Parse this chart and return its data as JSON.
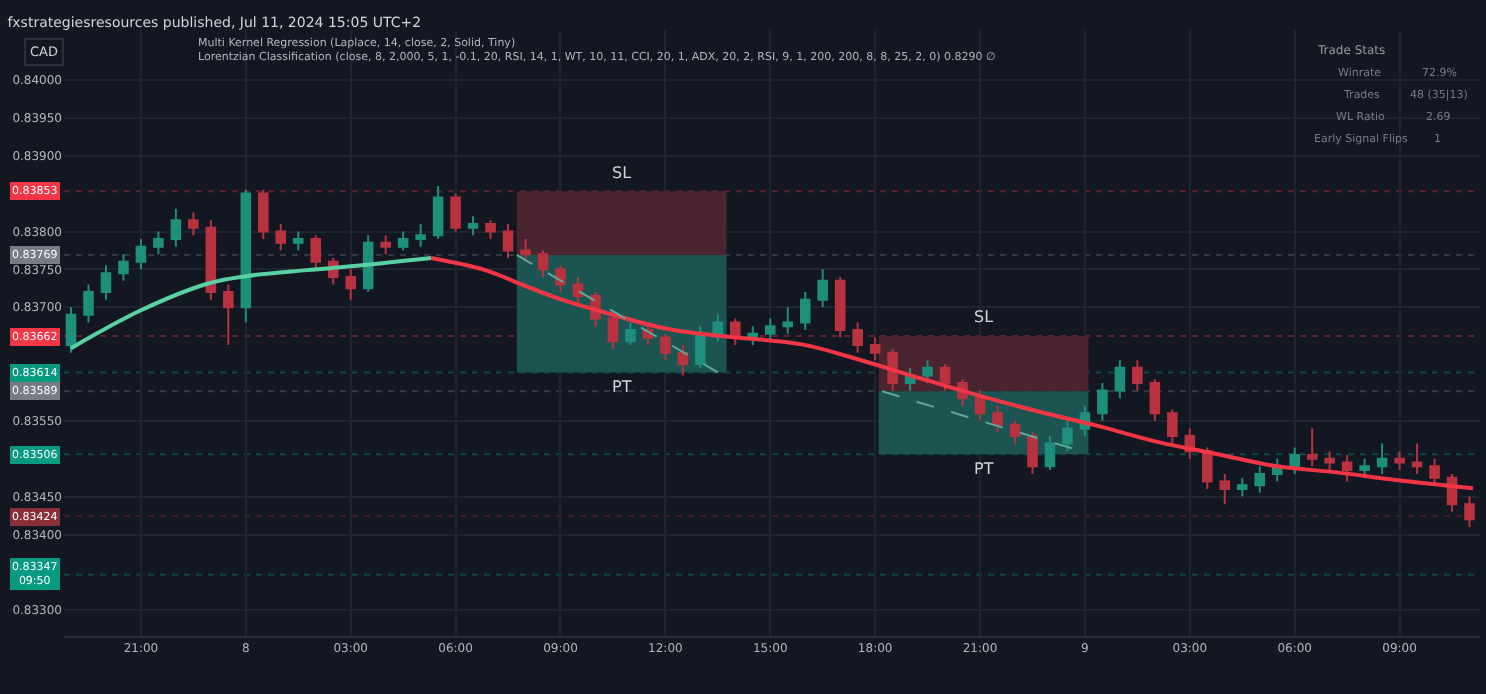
{
  "chart_data": {
    "type": "candlestick",
    "title": "fxstrategiesresources published, Jul 11, 2024 15:05 UTC+2",
    "subtitle": "Multi Kernel Regression (Laplace, 14, close, 2, Solid, Tiny)\nLorentzian Classification (close, 8, 2,000, 5, 1, -0.1, 20, RSI, 14, 1, WT, 10, 11, CCI, 20, 1, ADX, 20, 2, RSI, 9, 1, 200, 200, 8, 8, 25, 2, 0) 0.8290 ∅",
    "xlim": [
      "2024-07-07T18:48",
      "2024-07-09T11:18"
    ],
    "xticks": [
      {
        "value": "2024-07-07T21:00",
        "label": "21:00"
      },
      {
        "value": "2024-07-08T00:00",
        "label": "8"
      },
      {
        "value": "2024-07-08T03:00",
        "label": "03:00"
      },
      {
        "value": "2024-07-08T06:00",
        "label": "06:00"
      },
      {
        "value": "2024-07-08T09:00",
        "label": "09:00"
      },
      {
        "value": "2024-07-08T12:00",
        "label": "12:00"
      },
      {
        "value": "2024-07-08T15:00",
        "label": "15:00"
      },
      {
        "value": "2024-07-08T18:00",
        "label": "18:00"
      },
      {
        "value": "2024-07-08T21:00",
        "label": "21:00"
      },
      {
        "value": "2024-07-09T00:00",
        "label": "9"
      },
      {
        "value": "2024-07-09T03:00",
        "label": "03:00"
      },
      {
        "value": "2024-07-09T06:00",
        "label": "06:00"
      },
      {
        "value": "2024-07-09T09:00",
        "label": "09:00"
      }
    ],
    "ylim": [
      0.83266,
      0.84066
    ],
    "yticks": [
      {
        "value": 0.84,
        "label": "0.84000"
      },
      {
        "value": 0.8395,
        "label": "0.83950"
      },
      {
        "value": 0.839,
        "label": "0.83900"
      },
      {
        "value": 0.838,
        "label": "0.83800"
      },
      {
        "value": 0.8375,
        "label": "0.83750"
      },
      {
        "value": 0.837,
        "label": "0.83700"
      },
      {
        "value": 0.8355,
        "label": "0.83550"
      },
      {
        "value": 0.8345,
        "label": "0.83450"
      },
      {
        "value": 0.834,
        "label": "0.83400"
      },
      {
        "value": 0.833,
        "label": "0.83300"
      }
    ],
    "grid": true,
    "series": [
      {
        "x": [
          "2024-07-07T19:00",
          "2024-07-07T19:30",
          "2024-07-07T20:00",
          "2024-07-07T20:30",
          "2024-07-07T21:00",
          "2024-07-07T21:30",
          "2024-07-07T22:00",
          "2024-07-07T22:30",
          "2024-07-07T23:00",
          "2024-07-07T23:30",
          "2024-07-08T00:00",
          "2024-07-08T00:30",
          "2024-07-08T01:00",
          "2024-07-08T01:30",
          "2024-07-08T02:00",
          "2024-07-08T02:30",
          "2024-07-08T03:00",
          "2024-07-08T03:30",
          "2024-07-08T04:00",
          "2024-07-08T04:30",
          "2024-07-08T05:00",
          "2024-07-08T05:30",
          "2024-07-08T06:00",
          "2024-07-08T06:30",
          "2024-07-08T07:00",
          "2024-07-08T07:30",
          "2024-07-08T08:00",
          "2024-07-08T08:30",
          "2024-07-08T09:00",
          "2024-07-08T09:30",
          "2024-07-08T10:00",
          "2024-07-08T10:30",
          "2024-07-08T11:00",
          "2024-07-08T11:30",
          "2024-07-08T12:00",
          "2024-07-08T12:30",
          "2024-07-08T13:00",
          "2024-07-08T13:30",
          "2024-07-08T14:00",
          "2024-07-08T14:30",
          "2024-07-08T15:00",
          "2024-07-08T15:30",
          "2024-07-08T16:00",
          "2024-07-08T16:30",
          "2024-07-08T17:00",
          "2024-07-08T17:30",
          "2024-07-08T18:00",
          "2024-07-08T18:30",
          "2024-07-08T19:00",
          "2024-07-08T19:30",
          "2024-07-08T20:00",
          "2024-07-08T20:30",
          "2024-07-08T21:00",
          "2024-07-08T21:30",
          "2024-07-08T22:00",
          "2024-07-08T22:30",
          "2024-07-08T23:00",
          "2024-07-08T23:30",
          "2024-07-09T00:00",
          "2024-07-09T00:30",
          "2024-07-09T01:00",
          "2024-07-09T01:30",
          "2024-07-09T02:00",
          "2024-07-09T02:30",
          "2024-07-09T03:00",
          "2024-07-09T03:30",
          "2024-07-09T04:00",
          "2024-07-09T04:30",
          "2024-07-09T05:00",
          "2024-07-09T05:30",
          "2024-07-09T06:00",
          "2024-07-09T06:30",
          "2024-07-09T07:00",
          "2024-07-09T07:30",
          "2024-07-09T08:00",
          "2024-07-09T08:30",
          "2024-07-09T09:00",
          "2024-07-09T09:30",
          "2024-07-09T10:00",
          "2024-07-09T10:30",
          "2024-07-09T11:00"
        ],
        "colors": [
          "#1d8f7a",
          "#1d8f7a",
          "#1d8f7a",
          "#1d8f7a",
          "#1d8f7a",
          "#1d8f7a",
          "#1d8f7a",
          "#b8333f",
          "#b8333f",
          "#b8333f",
          "#1d8f7a",
          "#b8333f",
          "#b8333f",
          "#1d8f7a",
          "#b8333f",
          "#b8333f",
          "#b8333f",
          "#1d8f7a",
          "#b8333f",
          "#1d8f7a",
          "#1d8f7a",
          "#1d8f7a",
          "#b8333f",
          "#1d8f7a",
          "#b8333f",
          "#b8333f",
          "#b8333f",
          "#b8333f",
          "#b8333f",
          "#b8333f",
          "#b8333f",
          "#b8333f",
          "#1d8f7a",
          "#b8333f",
          "#b8333f",
          "#b8333f",
          "#1d8f7a",
          "#1d8f7a",
          "#b8333f",
          "#1d8f7a",
          "#1d8f7a",
          "#1d8f7a",
          "#1d8f7a",
          "#1d8f7a",
          "#b8333f",
          "#b8333f",
          "#b8333f",
          "#b8333f",
          "#1d8f7a",
          "#1d8f7a",
          "#b8333f",
          "#b8333f",
          "#b8333f",
          "#b8333f",
          "#b8333f",
          "#b8333f",
          "#1d8f7a",
          "#1d8f7a",
          "#1d8f7a",
          "#1d8f7a",
          "#1d8f7a",
          "#b8333f",
          "#b8333f",
          "#b8333f",
          "#b8333f",
          "#b8333f",
          "#b8333f",
          "#1d8f7a",
          "#1d8f7a",
          "#1d8f7a",
          "#1d8f7a",
          "#b8333f",
          "#b8333f",
          "#b8333f",
          "#1d8f7a",
          "#1d8f7a",
          "#b8333f",
          "#b8333f",
          "#b8333f",
          "#b8333f",
          "#b8333f"
        ],
        "ohlc": [
          [
            0.8365,
            0.837,
            0.8364,
            0.8369
          ],
          [
            0.8369,
            0.8373,
            0.8368,
            0.8372
          ],
          [
            0.8372,
            0.83755,
            0.8371,
            0.83745
          ],
          [
            0.83745,
            0.8377,
            0.83735,
            0.8376
          ],
          [
            0.8376,
            0.8379,
            0.8375,
            0.8378
          ],
          [
            0.8378,
            0.838,
            0.8377,
            0.8379
          ],
          [
            0.8379,
            0.8383,
            0.8378,
            0.83815
          ],
          [
            0.83815,
            0.83825,
            0.83795,
            0.83805
          ],
          [
            0.83805,
            0.83815,
            0.8371,
            0.8372
          ],
          [
            0.8372,
            0.8373,
            0.8365,
            0.837
          ],
          [
            0.837,
            0.83855,
            0.8368,
            0.8385
          ],
          [
            0.8385,
            0.83855,
            0.8379,
            0.838
          ],
          [
            0.838,
            0.8381,
            0.83775,
            0.83785
          ],
          [
            0.83785,
            0.838,
            0.83775,
            0.8379
          ],
          [
            0.8379,
            0.83795,
            0.8375,
            0.8376
          ],
          [
            0.8376,
            0.83765,
            0.8373,
            0.8374
          ],
          [
            0.8374,
            0.8375,
            0.8371,
            0.83725
          ],
          [
            0.83725,
            0.83795,
            0.8372,
            0.83785
          ],
          [
            0.83785,
            0.83795,
            0.8377,
            0.8378
          ],
          [
            0.8378,
            0.838,
            0.83775,
            0.8379
          ],
          [
            0.8379,
            0.8381,
            0.8378,
            0.83795
          ],
          [
            0.83795,
            0.8386,
            0.8379,
            0.83845
          ],
          [
            0.83845,
            0.8385,
            0.838,
            0.83805
          ],
          [
            0.83805,
            0.8382,
            0.83795,
            0.8381
          ],
          [
            0.8381,
            0.83815,
            0.8379,
            0.838
          ],
          [
            0.838,
            0.8381,
            0.83765,
            0.83775
          ],
          [
            0.83775,
            0.8379,
            0.8376,
            0.8377
          ],
          [
            0.8377,
            0.83775,
            0.8374,
            0.8375
          ],
          [
            0.8375,
            0.83755,
            0.8372,
            0.8373
          ],
          [
            0.8373,
            0.8374,
            0.83705,
            0.83715
          ],
          [
            0.83715,
            0.8372,
            0.83675,
            0.83685
          ],
          [
            0.83685,
            0.8369,
            0.83645,
            0.83655
          ],
          [
            0.83655,
            0.8368,
            0.8365,
            0.8367
          ],
          [
            0.8367,
            0.8368,
            0.8365,
            0.8366
          ],
          [
            0.8366,
            0.83665,
            0.8363,
            0.8364
          ],
          [
            0.8364,
            0.8365,
            0.8361,
            0.83625
          ],
          [
            0.83625,
            0.83675,
            0.8362,
            0.83665
          ],
          [
            0.83665,
            0.8369,
            0.83655,
            0.8368
          ],
          [
            0.8368,
            0.83685,
            0.8365,
            0.8366
          ],
          [
            0.8366,
            0.83675,
            0.8365,
            0.83665
          ],
          [
            0.83665,
            0.83685,
            0.83655,
            0.83675
          ],
          [
            0.83675,
            0.837,
            0.83665,
            0.8368
          ],
          [
            0.8368,
            0.8372,
            0.8367,
            0.8371
          ],
          [
            0.8371,
            0.8375,
            0.837,
            0.83735
          ],
          [
            0.83735,
            0.8374,
            0.8366,
            0.8367
          ],
          [
            0.8367,
            0.8368,
            0.8364,
            0.8365
          ],
          [
            0.8365,
            0.8366,
            0.8363,
            0.8364
          ],
          [
            0.8364,
            0.83645,
            0.8359,
            0.836
          ],
          [
            0.836,
            0.8362,
            0.8359,
            0.8361
          ],
          [
            0.8361,
            0.8363,
            0.836,
            0.8362
          ],
          [
            0.8362,
            0.83625,
            0.8359,
            0.836
          ],
          [
            0.836,
            0.83605,
            0.8357,
            0.8358
          ],
          [
            0.8358,
            0.8359,
            0.8355,
            0.8356
          ],
          [
            0.8356,
            0.8357,
            0.83535,
            0.83545
          ],
          [
            0.83545,
            0.8355,
            0.8352,
            0.8353
          ],
          [
            0.8353,
            0.83535,
            0.8348,
            0.8349
          ],
          [
            0.8349,
            0.8353,
            0.83485,
            0.8352
          ],
          [
            0.8352,
            0.8355,
            0.8351,
            0.8354
          ],
          [
            0.8354,
            0.8357,
            0.8353,
            0.8356
          ],
          [
            0.8356,
            0.836,
            0.8355,
            0.8359
          ],
          [
            0.8359,
            0.8363,
            0.8358,
            0.8362
          ],
          [
            0.8362,
            0.8363,
            0.8359,
            0.836
          ],
          [
            0.836,
            0.83605,
            0.8355,
            0.8356
          ],
          [
            0.8356,
            0.83565,
            0.8352,
            0.8353
          ],
          [
            0.8353,
            0.8354,
            0.835,
            0.8351
          ],
          [
            0.8351,
            0.83515,
            0.8346,
            0.8347
          ],
          [
            0.8347,
            0.8348,
            0.8344,
            0.8346
          ],
          [
            0.8346,
            0.83475,
            0.8345,
            0.83465
          ],
          [
            0.83465,
            0.8349,
            0.83455,
            0.8348
          ],
          [
            0.8348,
            0.835,
            0.8347,
            0.8349
          ],
          [
            0.8349,
            0.83515,
            0.8348,
            0.83505
          ],
          [
            0.83505,
            0.8354,
            0.8349,
            0.835
          ],
          [
            0.835,
            0.8351,
            0.83485,
            0.83495
          ],
          [
            0.83495,
            0.83505,
            0.8347,
            0.83485
          ],
          [
            0.83485,
            0.835,
            0.83475,
            0.8349
          ],
          [
            0.8349,
            0.8352,
            0.8348,
            0.835
          ],
          [
            0.835,
            0.8351,
            0.83485,
            0.83495
          ],
          [
            0.83495,
            0.8352,
            0.8348,
            0.8349
          ],
          [
            0.8349,
            0.835,
            0.83465,
            0.83475
          ],
          [
            0.83475,
            0.8348,
            0.8343,
            0.8344
          ],
          [
            0.8344,
            0.8345,
            0.8341,
            0.8342
          ]
        ]
      },
      {
        "type": "line",
        "color": "#5ad1a4",
        "x": [
          "2024-07-07T19:00",
          "2024-07-07T21:00",
          "2024-07-07T22:54",
          "2024-07-08T00:00",
          "2024-07-08T01:45",
          "2024-07-08T03:00",
          "2024-07-08T05:18"
        ],
        "values": [
          0.83646,
          0.83696,
          0.83731,
          0.83741,
          0.83749,
          0.83754,
          0.83765
        ]
      },
      {
        "type": "line",
        "color": "#f23645",
        "x": [
          "2024-07-08T05:18",
          "2024-07-08T06:51",
          "2024-07-08T08:00",
          "2024-07-08T09:06",
          "2024-07-08T10:12",
          "2024-07-08T12:00",
          "2024-07-08T13:36",
          "2024-07-08T15:54",
          "2024-07-08T17:36",
          "2024-07-08T19:18",
          "2024-07-08T21:00",
          "2024-07-08T22:42",
          "2024-07-09T00:24",
          "2024-07-09T02:06",
          "2024-07-09T03:48",
          "2024-07-09T05:30",
          "2024-07-09T07:12",
          "2024-07-09T08:54",
          "2024-07-09T11:06"
        ],
        "values": [
          0.83765,
          0.83749,
          0.83728,
          0.83709,
          0.83694,
          0.83672,
          0.83662,
          0.83651,
          0.8363,
          0.83606,
          0.83583,
          0.83562,
          0.83543,
          0.83522,
          0.83506,
          0.8349,
          0.83482,
          0.83472,
          0.83461
        ]
      },
      {
        "type": "bar",
        "name": "SL",
        "color": "#4a2530",
        "x": [
          "2024-07-08T10:45"
        ],
        "base": [
          0.83769
        ],
        "values": [
          0.00084
        ]
      },
      {
        "type": "bar",
        "name": "PT",
        "color": "#1b5450",
        "x": [
          "2024-07-08T10:45"
        ],
        "base": [
          0.83614
        ],
        "values": [
          0.00155
        ]
      },
      {
        "type": "bar",
        "name": "SL",
        "color": "#4a2530",
        "x": [
          "2024-07-08T21:06"
        ],
        "base": [
          0.83589
        ],
        "values": [
          0.00073
        ]
      },
      {
        "type": "bar",
        "name": "PT",
        "color": "#1b5450",
        "x": [
          "2024-07-08T21:06"
        ],
        "base": [
          0.83506
        ],
        "values": [
          0.00083
        ]
      },
      {
        "type": "line",
        "color": "#5fa89a",
        "line_style": "dashed",
        "x": [
          "2024-07-08T07:45",
          "2024-07-08T13:30"
        ],
        "values": [
          0.83769,
          0.83614
        ]
      },
      {
        "type": "line",
        "color": "#5fa89a",
        "line_style": "dashed",
        "x": [
          "2024-07-08T18:12",
          "2024-07-08T23:45"
        ],
        "values": [
          0.83589,
          0.83512
        ]
      }
    ],
    "ref_lines": [
      {
        "axis": "y",
        "value": 0.83853,
        "label": "0.83853",
        "color": "#f23645"
      },
      {
        "axis": "y",
        "value": 0.83769,
        "label": "0.83769",
        "color": "#787b86"
      },
      {
        "axis": "y",
        "value": 0.83662,
        "label": "0.83662",
        "color": "#f23645"
      },
      {
        "axis": "y",
        "value": 0.83614,
        "label": "0.83614",
        "color": "#089981"
      },
      {
        "axis": "y",
        "value": 0.83589,
        "label": "0.83589",
        "color": "#787b86"
      },
      {
        "axis": "y",
        "value": 0.83506,
        "label": "0.83506",
        "color": "#089981"
      },
      {
        "axis": "y",
        "value": 0.83424,
        "label": "0.83424",
        "color": "#8a2f38"
      },
      {
        "axis": "y",
        "value": 0.83347,
        "label": "0.83347\n09:50",
        "color": "#089981"
      }
    ],
    "annotations": [
      "CAD",
      "Trade Stats",
      "Winrate",
      "72.9%",
      "Trades",
      "48 (35|13)",
      "WL Ratio",
      "2.69",
      "Early Signal Flips",
      "1"
    ]
  }
}
